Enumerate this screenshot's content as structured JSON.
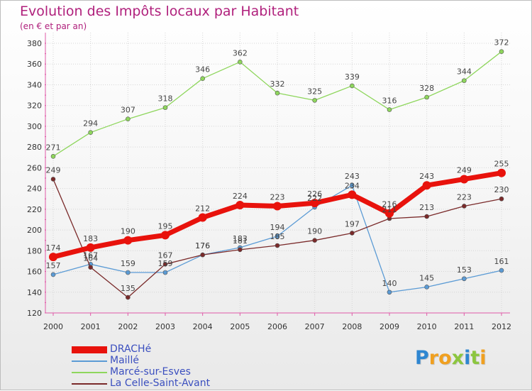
{
  "header": {
    "title": "Evolution des Impôts locaux par Habitant",
    "subtitle": "(en € et par an)"
  },
  "logo": {
    "text": "Proxiti",
    "letters": [
      "P",
      "r",
      "o",
      "x",
      "i",
      "t",
      "i"
    ],
    "colors": [
      "#2e86d1",
      "#f0a020",
      "#f0a020",
      "#8cc63f",
      "#2e86d1",
      "#8cc63f",
      "#f0a020"
    ]
  },
  "chart_data": {
    "type": "line",
    "title": "Evolution des Impôts locaux par Habitant",
    "subtitle": "(en € et par an)",
    "xlabel": "",
    "ylabel": "",
    "x": [
      "2000",
      "2001",
      "2002",
      "2003",
      "2004",
      "2005",
      "2006",
      "2007",
      "2008",
      "2009",
      "2010",
      "2011",
      "2012"
    ],
    "ylim": [
      120,
      380
    ],
    "yticks": [
      120,
      140,
      160,
      180,
      200,
      220,
      240,
      260,
      280,
      300,
      320,
      340,
      360,
      380
    ],
    "grid": true,
    "legend_position": "bottom-left",
    "series": [
      {
        "name": "DRACHé",
        "color": "#e8120c",
        "width": 7,
        "marker": 6,
        "values": [
          174,
          183,
          190,
          195,
          212,
          224,
          223,
          226,
          234,
          216,
          243,
          249,
          255
        ]
      },
      {
        "name": "Maillé",
        "color": "#5b9bd5",
        "width": 1.3,
        "marker": 3,
        "values": [
          157,
          167,
          159,
          159,
          176,
          183,
          194,
          222,
          243,
          140,
          145,
          153,
          161
        ]
      },
      {
        "name": "Marcé-sur-Esves",
        "color": "#8ed65c",
        "width": 1.3,
        "marker": 3,
        "values": [
          271,
          294,
          307,
          318,
          346,
          362,
          332,
          325,
          339,
          316,
          328,
          344,
          372
        ]
      },
      {
        "name": "La Celle-Saint-Avant",
        "color": "#7a2a2a",
        "width": 1.3,
        "marker": 3,
        "values": [
          249,
          164,
          135,
          167,
          176,
          181,
          185,
          190,
          197,
          211,
          213,
          223,
          230
        ]
      }
    ],
    "data_labels": [
      [
        "174",
        "183",
        "190",
        "195",
        "212",
        "224",
        "223",
        "226",
        "234",
        "216",
        "243",
        "249",
        "255"
      ],
      [
        "157",
        "167",
        "159",
        "159",
        "176",
        "183",
        "194",
        "222",
        "243",
        "140",
        "145",
        "153",
        "161"
      ],
      [
        "271",
        "294",
        "307",
        "318",
        "346",
        "362",
        "332",
        "325",
        "339",
        "316",
        "328",
        "344",
        "372"
      ],
      [
        "249",
        "164",
        "135",
        "167",
        "176",
        "181",
        "185",
        "190",
        "197",
        "211",
        "213",
        "223",
        "230"
      ]
    ]
  }
}
